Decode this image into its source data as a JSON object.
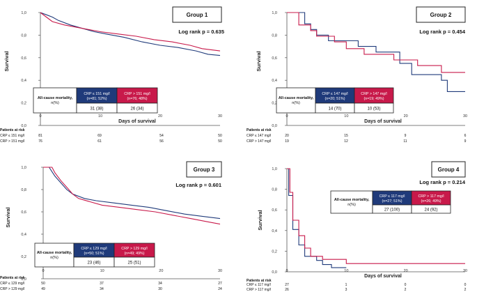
{
  "colors": {
    "low": "#1f3a7a",
    "high": "#c8194a"
  },
  "chart_data": [
    {
      "type": "line",
      "panel_id": "g1",
      "title": "Group 1",
      "logrank": "Log rank p = 0.635",
      "ylabel": "Survival",
      "xlabel": "Days of survival",
      "xlim": [
        0,
        30
      ],
      "ylim": [
        0,
        1
      ],
      "xticks": [
        0,
        10,
        20,
        30
      ],
      "yticks": [
        {
          "v": 0,
          "t": "0,0"
        },
        {
          "v": 0.2,
          "t": "0,2"
        },
        {
          "v": 0.4,
          "t": "0,4"
        },
        {
          "v": 0.6,
          "t": "0,6"
        },
        {
          "v": 0.8,
          "t": "0,8"
        },
        {
          "v": 1,
          "t": "1,0"
        }
      ],
      "series": [
        {
          "name": "CRP ≤ 151 mg/l",
          "color": "#1f3a7a",
          "points": [
            [
              0,
              1
            ],
            [
              1,
              0.98
            ],
            [
              2,
              0.96
            ],
            [
              3,
              0.93
            ],
            [
              5,
              0.89
            ],
            [
              7,
              0.86
            ],
            [
              9,
              0.83
            ],
            [
              11,
              0.81
            ],
            [
              14,
              0.78
            ],
            [
              17,
              0.74
            ],
            [
              20,
              0.71
            ],
            [
              23,
              0.69
            ],
            [
              26,
              0.66
            ],
            [
              28,
              0.63
            ],
            [
              30,
              0.62
            ]
          ]
        },
        {
          "name": "CRP > 151 mg/l",
          "color": "#c8194a",
          "points": [
            [
              0,
              1
            ],
            [
              1,
              0.96
            ],
            [
              2,
              0.92
            ],
            [
              4,
              0.89
            ],
            [
              6,
              0.87
            ],
            [
              8,
              0.85
            ],
            [
              10,
              0.83
            ],
            [
              13,
              0.81
            ],
            [
              16,
              0.79
            ],
            [
              19,
              0.76
            ],
            [
              22,
              0.74
            ],
            [
              25,
              0.71
            ],
            [
              27,
              0.68
            ],
            [
              30,
              0.66
            ]
          ]
        }
      ],
      "mortality": {
        "label": "All-cause mortality, n(%)",
        "low_header": "CRP ≤ 151 mg/l (n=81; 52%)",
        "high_header": "CRP > 151 mg/l (n=76; 48%)",
        "low_value": "31 (38)",
        "high_value": "26 (34)"
      },
      "risk": {
        "header": "Patients at risk",
        "low_label": "CRP ≤ 151 mg/l",
        "high_label": "CRP > 151 mg/l",
        "low": [
          "81",
          "69",
          "54",
          "50"
        ],
        "high": [
          "76",
          "61",
          "56",
          "50"
        ]
      }
    },
    {
      "type": "line",
      "panel_id": "g2",
      "title": "Group 2",
      "logrank": "Log rank p = 0.454",
      "ylabel": "Survival",
      "xlabel": "Days of survival",
      "xlim": [
        0,
        30
      ],
      "ylim": [
        0,
        1
      ],
      "xticks": [
        0,
        10,
        20,
        30
      ],
      "yticks": [
        {
          "v": 0,
          "t": "0,0"
        },
        {
          "v": 0.2,
          "t": "0,2"
        },
        {
          "v": 0.4,
          "t": "0,4"
        },
        {
          "v": 0.6,
          "t": "0,6"
        },
        {
          "v": 0.8,
          "t": "0,8"
        },
        {
          "v": 1,
          "t": "1,0"
        }
      ],
      "series": [
        {
          "name": "CRP ≤ 147 mg/l",
          "color": "#1f3a7a",
          "points": [
            [
              0,
              1
            ],
            [
              3,
              1
            ],
            [
              3,
              0.9
            ],
            [
              4,
              0.9
            ],
            [
              4,
              0.85
            ],
            [
              5,
              0.85
            ],
            [
              5,
              0.8
            ],
            [
              7,
              0.8
            ],
            [
              7,
              0.75
            ],
            [
              12,
              0.75
            ],
            [
              12,
              0.7
            ],
            [
              15,
              0.7
            ],
            [
              15,
              0.65
            ],
            [
              19,
              0.65
            ],
            [
              19,
              0.55
            ],
            [
              21,
              0.55
            ],
            [
              21,
              0.45
            ],
            [
              26,
              0.45
            ],
            [
              26,
              0.4
            ],
            [
              27,
              0.4
            ],
            [
              27,
              0.3
            ],
            [
              30,
              0.3
            ]
          ]
        },
        {
          "name": "CRP > 147 mg/l",
          "color": "#c8194a",
          "points": [
            [
              0,
              1
            ],
            [
              2,
              1
            ],
            [
              2,
              0.89
            ],
            [
              4,
              0.89
            ],
            [
              4,
              0.84
            ],
            [
              5,
              0.84
            ],
            [
              5,
              0.79
            ],
            [
              8,
              0.79
            ],
            [
              8,
              0.74
            ],
            [
              10,
              0.74
            ],
            [
              10,
              0.68
            ],
            [
              13,
              0.68
            ],
            [
              13,
              0.63
            ],
            [
              18,
              0.63
            ],
            [
              18,
              0.58
            ],
            [
              22,
              0.58
            ],
            [
              22,
              0.53
            ],
            [
              26,
              0.53
            ],
            [
              26,
              0.47
            ],
            [
              30,
              0.47
            ]
          ]
        }
      ],
      "mortality": {
        "label": "All-cause mortality, n(%)",
        "low_header": "CRP ≤ 147 mg/l (n=20; 51%)",
        "high_header": "CRP > 147 mg/l (n=19; 49%)",
        "low_value": "14 (70)",
        "high_value": "10 (53)"
      },
      "risk": {
        "header": "Patients at risk",
        "low_label": "CRP ≤ 147 mg/l",
        "high_label": "CRP > 147 mg/l",
        "low": [
          "20",
          "15",
          "9",
          "6"
        ],
        "high": [
          "19",
          "12",
          "11",
          "9"
        ]
      }
    },
    {
      "type": "line",
      "panel_id": "g3",
      "title": "Group 3",
      "logrank": "Log rank p = 0.601",
      "ylabel": "Survival",
      "xlabel": "",
      "xlim": [
        0,
        30
      ],
      "ylim": [
        0,
        1
      ],
      "xticks": [
        0,
        10,
        20,
        30
      ],
      "yticks": [
        {
          "v": 0,
          "t": "0,0"
        },
        {
          "v": 0.2,
          "t": "0,2"
        },
        {
          "v": 0.4,
          "t": "0,4"
        },
        {
          "v": 0.6,
          "t": "0,6"
        },
        {
          "v": 0.8,
          "t": "0,8"
        },
        {
          "v": 1,
          "t": "1,0"
        }
      ],
      "series": [
        {
          "name": "CRP ≤ 129 mg/l",
          "color": "#1f3a7a",
          "points": [
            [
              0,
              1
            ],
            [
              1,
              1
            ],
            [
              1.5,
              0.96
            ],
            [
              2,
              0.92
            ],
            [
              3,
              0.86
            ],
            [
              4,
              0.8
            ],
            [
              5,
              0.76
            ],
            [
              7,
              0.72
            ],
            [
              9,
              0.7
            ],
            [
              12,
              0.68
            ],
            [
              15,
              0.66
            ],
            [
              18,
              0.64
            ],
            [
              21,
              0.61
            ],
            [
              24,
              0.58
            ],
            [
              27,
              0.56
            ],
            [
              30,
              0.54
            ]
          ]
        },
        {
          "name": "CRP > 129 mg/l",
          "color": "#c8194a",
          "points": [
            [
              0,
              1
            ],
            [
              1.5,
              1
            ],
            [
              2,
              0.95
            ],
            [
              3,
              0.88
            ],
            [
              4,
              0.82
            ],
            [
              5,
              0.76
            ],
            [
              6,
              0.72
            ],
            [
              8,
              0.69
            ],
            [
              10,
              0.66
            ],
            [
              13,
              0.64
            ],
            [
              16,
              0.62
            ],
            [
              19,
              0.6
            ],
            [
              22,
              0.57
            ],
            [
              25,
              0.54
            ],
            [
              28,
              0.51
            ],
            [
              30,
              0.49
            ]
          ]
        }
      ],
      "mortality": {
        "label": "All-cause mortality, n(%)",
        "low_header": "CRP ≤ 129 mg/l (n=50; 51%)",
        "high_header": "CRP > 129 mg/l (n=49; 49%)",
        "low_value": "23 (46)",
        "high_value": "25 (51)"
      },
      "risk": {
        "header": "Patients at risk",
        "low_label": "CRP ≤ 129 mg/l",
        "high_label": "CRP > 129 mg/l",
        "low": [
          "50",
          "37",
          "34",
          "27"
        ],
        "high": [
          "49",
          "34",
          "30",
          "24"
        ]
      }
    },
    {
      "type": "line",
      "panel_id": "g4",
      "title": "Group 4",
      "logrank": "Log rank p = 0.214",
      "ylabel": "Survival",
      "xlabel": "Days of survival",
      "xlim": [
        0,
        30
      ],
      "ylim": [
        0,
        1
      ],
      "xticks": [
        0,
        10,
        20,
        30
      ],
      "yticks": [
        {
          "v": 0,
          "t": "0,0"
        },
        {
          "v": 0.2,
          "t": "0,2"
        },
        {
          "v": 0.4,
          "t": "0,4"
        },
        {
          "v": 0.6,
          "t": "0,6"
        },
        {
          "v": 0.8,
          "t": "0,8"
        },
        {
          "v": 1,
          "t": "1,0"
        }
      ],
      "series": [
        {
          "name": "CRP ≤ 117 mg/l",
          "color": "#1f3a7a",
          "points": [
            [
              0,
              1
            ],
            [
              0.3,
              1
            ],
            [
              0.3,
              0.74
            ],
            [
              1,
              0.74
            ],
            [
              1,
              0.41
            ],
            [
              2,
              0.41
            ],
            [
              2,
              0.26
            ],
            [
              3,
              0.26
            ],
            [
              3,
              0.15
            ],
            [
              5,
              0.15
            ],
            [
              5,
              0.11
            ],
            [
              6,
              0.11
            ],
            [
              6,
              0.07
            ],
            [
              7.5,
              0.07
            ],
            [
              7.5,
              0.04
            ],
            [
              10,
              0.04
            ]
          ]
        },
        {
          "name": "CRP > 117 mg/l",
          "color": "#c8194a",
          "points": [
            [
              0,
              1
            ],
            [
              0.5,
              1
            ],
            [
              0.5,
              0.77
            ],
            [
              1,
              0.77
            ],
            [
              1,
              0.5
            ],
            [
              2,
              0.5
            ],
            [
              2,
              0.35
            ],
            [
              3,
              0.35
            ],
            [
              3,
              0.23
            ],
            [
              4,
              0.23
            ],
            [
              4,
              0.15
            ],
            [
              6,
              0.15
            ],
            [
              6,
              0.12
            ],
            [
              10,
              0.12
            ],
            [
              10,
              0.08
            ],
            [
              30,
              0.08
            ]
          ]
        }
      ],
      "mortality": {
        "label": "All-cause mortality, n(%)",
        "low_header": "CRP ≤ 117 mg/l (n=27; 51%)",
        "high_header": "CRP > 117 mg/l (n=26; 49%)",
        "low_value": "27 (100)",
        "high_value": "24 (92)"
      },
      "risk": {
        "header": "Patients at risk",
        "low_label": "CRP ≤ 117 mg/l",
        "high_label": "CRP > 117 mg/l",
        "low": [
          "27",
          "1",
          "0",
          "0"
        ],
        "high": [
          "26",
          "3",
          "2",
          "2"
        ]
      }
    }
  ]
}
